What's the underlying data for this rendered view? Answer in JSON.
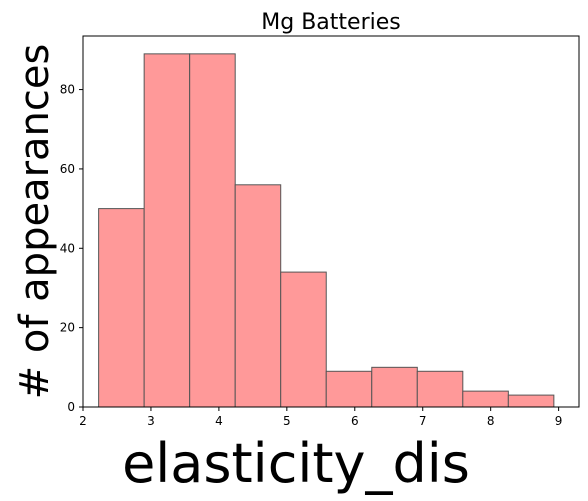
{
  "chart_data": {
    "type": "bar",
    "title": "Mg Batteries",
    "xlabel": "elasticity_dis",
    "ylabel": "# of appearances",
    "bin_edges": [
      2.23,
      2.9,
      3.57,
      4.24,
      4.91,
      5.58,
      6.25,
      6.92,
      7.59,
      8.26,
      8.93
    ],
    "values": [
      50,
      89,
      89,
      56,
      34,
      9,
      10,
      9,
      4,
      3
    ],
    "xlim": [
      2.0,
      9.3
    ],
    "ylim": [
      0,
      93.5
    ],
    "xticks": [
      2,
      3,
      4,
      5,
      6,
      7,
      8,
      9
    ],
    "yticks": [
      0,
      20,
      40,
      60,
      80
    ],
    "bar_color": "#ff9999",
    "bar_edge_color": "#555555",
    "grid": false
  }
}
